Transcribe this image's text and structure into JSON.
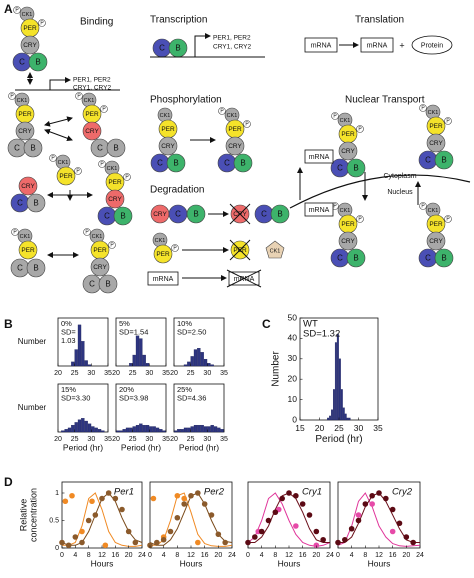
{
  "panel_labels": [
    "A",
    "B",
    "C",
    "D"
  ],
  "diagram": {
    "titles": {
      "binding": "Binding",
      "transcription": "Transcription",
      "translation": "Translation",
      "phosphorylation": "Phosphorylation",
      "degradation": "Degradation",
      "nuclear_transport": "Nuclear Transport"
    },
    "molecules": {
      "ck1": "CK1",
      "per": "PER",
      "cry": "CRY",
      "clock": "C",
      "bmal": "B",
      "p": "P"
    },
    "genes": [
      "PER1, PER2",
      "CRY1, CRY2"
    ],
    "mrna": "mRNA",
    "plus": "+",
    "protein": "Protein",
    "cytoplasm": "Cytoplasm",
    "nucleus": "Nucleus"
  },
  "chart_data": [
    {
      "type": "histogram",
      "annotation": [
        "0%",
        "SD=",
        "1.03"
      ],
      "ylabel": "Number",
      "bins": [
        20,
        21,
        22,
        23,
        24,
        25,
        26,
        27,
        28,
        29,
        30,
        31,
        32,
        33,
        34,
        35
      ],
      "values": [
        0,
        0,
        0,
        0,
        3,
        12,
        30,
        18,
        4,
        1,
        0,
        0,
        0,
        0,
        0
      ],
      "xlim": [
        20,
        35
      ],
      "xticks": [
        20,
        25,
        30,
        35
      ],
      "ylim": [
        0,
        35
      ],
      "color": "#2e3580"
    },
    {
      "type": "histogram",
      "annotation": [
        "5%",
        "SD=1.54"
      ],
      "bins": [
        20,
        21,
        22,
        23,
        24,
        25,
        26,
        27,
        28,
        29,
        30,
        31,
        32,
        33,
        34,
        35
      ],
      "values": [
        0,
        0,
        0,
        0,
        2,
        8,
        22,
        20,
        8,
        2,
        0,
        0,
        0,
        0,
        0
      ],
      "xlim": [
        20,
        35
      ],
      "xticks": [
        20,
        25,
        30,
        35
      ],
      "ylim": [
        0,
        35
      ],
      "color": "#2e3580"
    },
    {
      "type": "histogram",
      "annotation": [
        "10%",
        "SD=2.50"
      ],
      "bins": [
        20,
        21,
        22,
        23,
        24,
        25,
        26,
        27,
        28,
        29,
        30,
        31,
        32,
        33,
        34,
        35
      ],
      "values": [
        0,
        0,
        0,
        1,
        3,
        7,
        12,
        13,
        10,
        5,
        2,
        1,
        0,
        0,
        0
      ],
      "xlim": [
        20,
        35
      ],
      "xticks": [
        20,
        25,
        30,
        35
      ],
      "ylim": [
        0,
        35
      ],
      "color": "#2e3580"
    },
    {
      "type": "histogram",
      "annotation": [
        "15%",
        "SD=3.30"
      ],
      "ylabel": "Number",
      "xlabel": "Period (hr)",
      "bins": [
        20,
        21,
        22,
        23,
        24,
        25,
        26,
        27,
        28,
        29,
        30,
        31,
        32,
        33,
        34,
        35
      ],
      "values": [
        0,
        1,
        2,
        3,
        5,
        7,
        9,
        10,
        8,
        6,
        4,
        3,
        2,
        1,
        0
      ],
      "xlim": [
        20,
        35
      ],
      "xticks": [
        20,
        25,
        30,
        35
      ],
      "ylim": [
        0,
        35
      ],
      "color": "#2e3580"
    },
    {
      "type": "histogram",
      "annotation": [
        "20%",
        "SD=3.98"
      ],
      "xlabel": "Period (hr)",
      "bins": [
        20,
        21,
        22,
        23,
        24,
        25,
        26,
        27,
        28,
        29,
        30,
        31,
        32,
        33,
        34,
        35
      ],
      "values": [
        1,
        1,
        2,
        3,
        3,
        4,
        5,
        6,
        5,
        5,
        4,
        4,
        3,
        2,
        1
      ],
      "xlim": [
        20,
        35
      ],
      "xticks": [
        20,
        25,
        30,
        35
      ],
      "ylim": [
        0,
        35
      ],
      "color": "#2e3580"
    },
    {
      "type": "histogram",
      "annotation": [
        "25%",
        "SD=4.36"
      ],
      "xlabel": "Period (hr)",
      "bins": [
        20,
        21,
        22,
        23,
        24,
        25,
        26,
        27,
        28,
        29,
        30,
        31,
        32,
        33,
        34,
        35
      ],
      "values": [
        1,
        2,
        2,
        3,
        3,
        4,
        5,
        5,
        5,
        4,
        4,
        5,
        4,
        3,
        2
      ],
      "xlim": [
        20,
        35
      ],
      "xticks": [
        20,
        25,
        30,
        35
      ],
      "ylim": [
        0,
        35
      ],
      "color": "#2e3580"
    },
    {
      "type": "histogram",
      "annotation": [
        "WT",
        "SD=1.32"
      ],
      "ylabel": "Number",
      "xlabel": "Period (hr)",
      "bins": [
        22,
        22.5,
        23,
        23.5,
        24,
        24.5,
        25,
        25.5,
        26,
        26.5,
        27,
        27.5,
        28,
        28.5,
        29
      ],
      "values": [
        1,
        2,
        5,
        15,
        38,
        42,
        30,
        15,
        6,
        3,
        1,
        1,
        0,
        0
      ],
      "xlim": [
        15,
        35
      ],
      "xticks": [
        15,
        20,
        25,
        30,
        35
      ],
      "ylim": [
        0,
        50
      ],
      "yticks": [
        0,
        10,
        20,
        30,
        40,
        50
      ],
      "color": "#2e3580"
    },
    {
      "type": "line",
      "title": "Per1",
      "ylabel": [
        "Relative",
        "concentration"
      ],
      "xlabel": "Hours",
      "xlim": [
        0,
        24
      ],
      "xticks": [
        0,
        4,
        8,
        12,
        16,
        20,
        24
      ],
      "ylim": [
        0,
        1.2
      ],
      "yticks": [
        0,
        0.5,
        1
      ],
      "series": [
        {
          "type": "line",
          "color": "#f08a24",
          "x": [
            0,
            2,
            4,
            6,
            8,
            10,
            12,
            14,
            16,
            18,
            20,
            22,
            24
          ],
          "values": [
            0.05,
            0.05,
            0.1,
            0.4,
            0.9,
            1.0,
            0.7,
            0.3,
            0.1,
            0.05,
            0.03,
            0.03,
            0.05
          ]
        },
        {
          "type": "line",
          "color": "#7a4a1a",
          "x": [
            0,
            2,
            4,
            6,
            8,
            10,
            12,
            14,
            16,
            18,
            20,
            22,
            24
          ],
          "values": [
            0.1,
            0.05,
            0.05,
            0.1,
            0.3,
            0.6,
            0.9,
            1.0,
            0.85,
            0.55,
            0.3,
            0.15,
            0.1
          ]
        },
        {
          "type": "scatter",
          "color": "#f08a24",
          "x": [
            1,
            3,
            6,
            9,
            13
          ],
          "values": [
            0.85,
            0.95,
            0.3,
            0.85,
            0.05
          ]
        },
        {
          "type": "scatter",
          "color": "#8b5a2b",
          "x": [
            0,
            2,
            4,
            6,
            8,
            10,
            12,
            14,
            16,
            18,
            20,
            22
          ],
          "values": [
            0.1,
            0.05,
            0.2,
            0.1,
            0.5,
            0.6,
            0.9,
            1.0,
            0.9,
            0.7,
            0.3,
            0.1
          ]
        }
      ]
    },
    {
      "type": "line",
      "title": "Per2",
      "xlabel": "Hours",
      "xlim": [
        0,
        24
      ],
      "xticks": [
        0,
        4,
        8,
        12,
        16,
        20,
        24
      ],
      "ylim": [
        0,
        1.2
      ],
      "series": [
        {
          "type": "line",
          "color": "#f08a24",
          "x": [
            0,
            2,
            4,
            6,
            8,
            10,
            12,
            14,
            16,
            18,
            20,
            22,
            24
          ],
          "values": [
            0.05,
            0.05,
            0.15,
            0.5,
            0.95,
            1.0,
            0.65,
            0.25,
            0.08,
            0.04,
            0.03,
            0.03,
            0.05
          ]
        },
        {
          "type": "line",
          "color": "#7a4a1a",
          "x": [
            0,
            2,
            4,
            6,
            8,
            10,
            12,
            14,
            16,
            18,
            20,
            22,
            24
          ],
          "values": [
            0.1,
            0.05,
            0.05,
            0.15,
            0.35,
            0.65,
            0.95,
            1.0,
            0.8,
            0.5,
            0.25,
            0.12,
            0.1
          ]
        },
        {
          "type": "scatter",
          "color": "#f08a24",
          "x": [
            1,
            4,
            8,
            10,
            14
          ],
          "values": [
            0.9,
            0.2,
            0.95,
            0.9,
            0.1
          ]
        },
        {
          "type": "scatter",
          "color": "#8b5a2b",
          "x": [
            0,
            2,
            4,
            6,
            8,
            10,
            12,
            14,
            16,
            18,
            20,
            22
          ],
          "values": [
            0.05,
            0.1,
            0.15,
            0.3,
            0.55,
            0.8,
            0.95,
            1.0,
            0.8,
            0.6,
            0.25,
            0.1
          ]
        }
      ]
    },
    {
      "type": "line",
      "title": "Cry1",
      "xlabel": "Hours",
      "xlim": [
        0,
        24
      ],
      "xticks": [
        0,
        4,
        8,
        12,
        16,
        20,
        24
      ],
      "ylim": [
        0,
        1.2
      ],
      "series": [
        {
          "type": "line",
          "color": "#e0359a",
          "x": [
            0,
            2,
            4,
            6,
            8,
            10,
            12,
            14,
            16,
            18,
            20,
            22,
            24
          ],
          "values": [
            0.1,
            0.2,
            0.5,
            0.9,
            1.0,
            0.8,
            0.5,
            0.25,
            0.1,
            0.05,
            0.03,
            0.05,
            0.1
          ]
        },
        {
          "type": "line",
          "color": "#6b0f1a",
          "x": [
            0,
            2,
            4,
            6,
            8,
            10,
            12,
            14,
            16,
            18,
            20,
            22,
            24
          ],
          "values": [
            0.1,
            0.1,
            0.2,
            0.4,
            0.7,
            0.95,
            1.0,
            0.9,
            0.65,
            0.35,
            0.15,
            0.1,
            0.1
          ]
        },
        {
          "type": "scatter",
          "color": "#e64aa8",
          "x": [
            3,
            9,
            14,
            20
          ],
          "values": [
            0.3,
            0.7,
            0.4,
            0.05
          ]
        },
        {
          "type": "scatter",
          "color": "#5c0a14",
          "x": [
            0,
            2,
            4,
            6,
            8,
            10,
            12,
            14,
            16,
            18,
            20,
            22
          ],
          "values": [
            0.1,
            0.2,
            0.3,
            0.5,
            0.65,
            0.9,
            1.0,
            0.95,
            0.8,
            0.6,
            0.3,
            0.15
          ]
        }
      ]
    },
    {
      "type": "line",
      "title": "Cry2",
      "xlabel": "Hours",
      "xlim": [
        0,
        24
      ],
      "xticks": [
        0,
        4,
        8,
        12,
        16,
        20,
        24
      ],
      "ylim": [
        0,
        1.2
      ],
      "series": [
        {
          "type": "line",
          "color": "#e0359a",
          "x": [
            0,
            2,
            4,
            6,
            8,
            10,
            12,
            14,
            16,
            18,
            20,
            22,
            24
          ],
          "values": [
            0.05,
            0.1,
            0.4,
            0.85,
            1.0,
            0.75,
            0.4,
            0.2,
            0.08,
            0.04,
            0.03,
            0.04,
            0.05
          ]
        },
        {
          "type": "line",
          "color": "#6b0f1a",
          "x": [
            0,
            2,
            4,
            6,
            8,
            10,
            12,
            14,
            16,
            18,
            20,
            22,
            24
          ],
          "values": [
            0.1,
            0.1,
            0.2,
            0.45,
            0.75,
            0.95,
            1.0,
            0.85,
            0.6,
            0.35,
            0.15,
            0.1,
            0.1
          ]
        },
        {
          "type": "scatter",
          "color": "#e64aa8",
          "x": [
            6,
            10,
            16
          ],
          "values": [
            0.6,
            0.8,
            0.3
          ]
        },
        {
          "type": "scatter",
          "color": "#5c0a14",
          "x": [
            0,
            2,
            4,
            6,
            8,
            10,
            12,
            14,
            16,
            18,
            20,
            22
          ],
          "values": [
            0.1,
            0.15,
            0.35,
            0.5,
            0.8,
            0.95,
            1.0,
            0.9,
            0.7,
            0.45,
            0.2,
            0.1
          ]
        }
      ]
    }
  ]
}
